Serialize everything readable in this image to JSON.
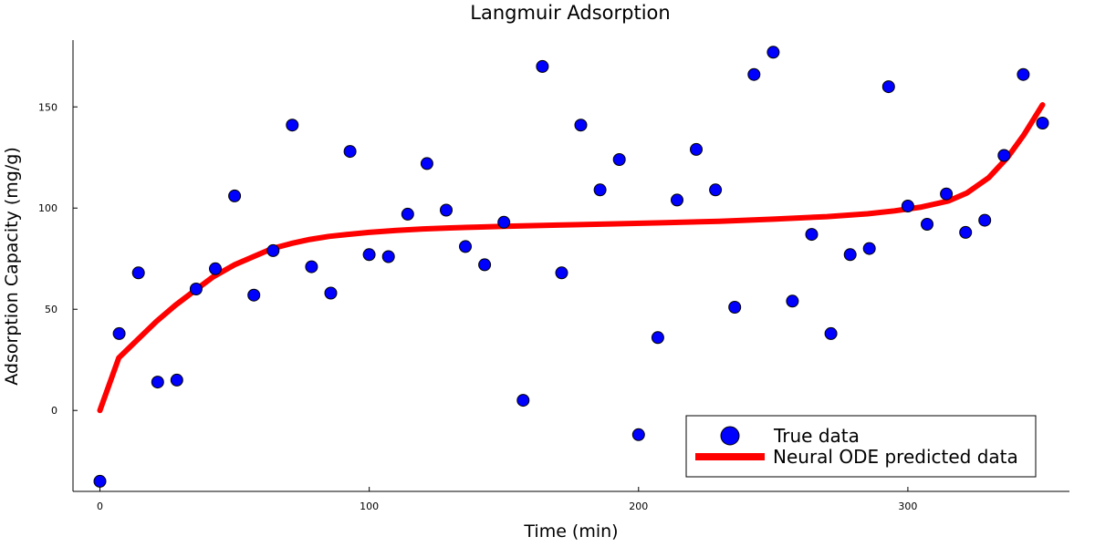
{
  "chart_data": {
    "type": "scatter",
    "title": "Langmuir Adsorption",
    "xlabel": "Time (min)",
    "ylabel": "Adsorption Capacity (mg/g)",
    "xlim": [
      -10,
      360
    ],
    "ylim": [
      -40,
      183
    ],
    "xticks": [
      0,
      100,
      200,
      300
    ],
    "yticks": [
      0,
      50,
      100,
      150
    ],
    "grid": false,
    "legend_position": "bottom-right",
    "series": [
      {
        "name": "True data",
        "kind": "scatter",
        "color": "#0000ff",
        "x": [
          0,
          7.14,
          14.29,
          21.43,
          28.57,
          35.71,
          42.86,
          50,
          57.14,
          64.29,
          71.43,
          78.57,
          85.71,
          92.86,
          100,
          107.14,
          114.29,
          121.43,
          128.57,
          135.71,
          142.86,
          150,
          157.14,
          164.29,
          171.43,
          178.57,
          185.71,
          192.86,
          200,
          207.14,
          214.29,
          221.43,
          228.57,
          235.71,
          242.86,
          250,
          257.14,
          264.29,
          271.43,
          278.57,
          285.71,
          292.86,
          300,
          307.14,
          314.29,
          321.43,
          328.57,
          335.71,
          342.86,
          350
        ],
        "y": [
          -35,
          38,
          68,
          14,
          15,
          60,
          70,
          106,
          57,
          79,
          141,
          71,
          58,
          128,
          77,
          76,
          97,
          122,
          99,
          81,
          72,
          93,
          5,
          170,
          68,
          141,
          109,
          124,
          -12,
          36,
          104,
          129,
          109,
          51,
          166,
          177,
          54,
          87,
          38,
          77,
          80,
          160,
          101,
          92,
          107,
          88,
          94,
          126,
          166,
          142
        ]
      },
      {
        "name": "Neural ODE predicted data",
        "kind": "line",
        "color": "#ff0000",
        "x": [
          0,
          7,
          14,
          21,
          28,
          35,
          42,
          50,
          57,
          64,
          71,
          78,
          85,
          92,
          100,
          110,
          120,
          130,
          140,
          150,
          170,
          190,
          210,
          230,
          250,
          270,
          285,
          295,
          305,
          315,
          322,
          330,
          337,
          343,
          350
        ],
        "y": [
          0,
          26,
          35,
          44,
          52,
          59,
          66,
          72,
          76,
          80,
          82.5,
          84.5,
          86,
          87,
          88,
          89,
          89.7,
          90.2,
          90.6,
          91,
          91.6,
          92.2,
          92.8,
          93.5,
          94.5,
          95.8,
          97.2,
          98.6,
          100.5,
          103.5,
          107.5,
          115,
          125,
          136,
          151
        ]
      }
    ]
  }
}
